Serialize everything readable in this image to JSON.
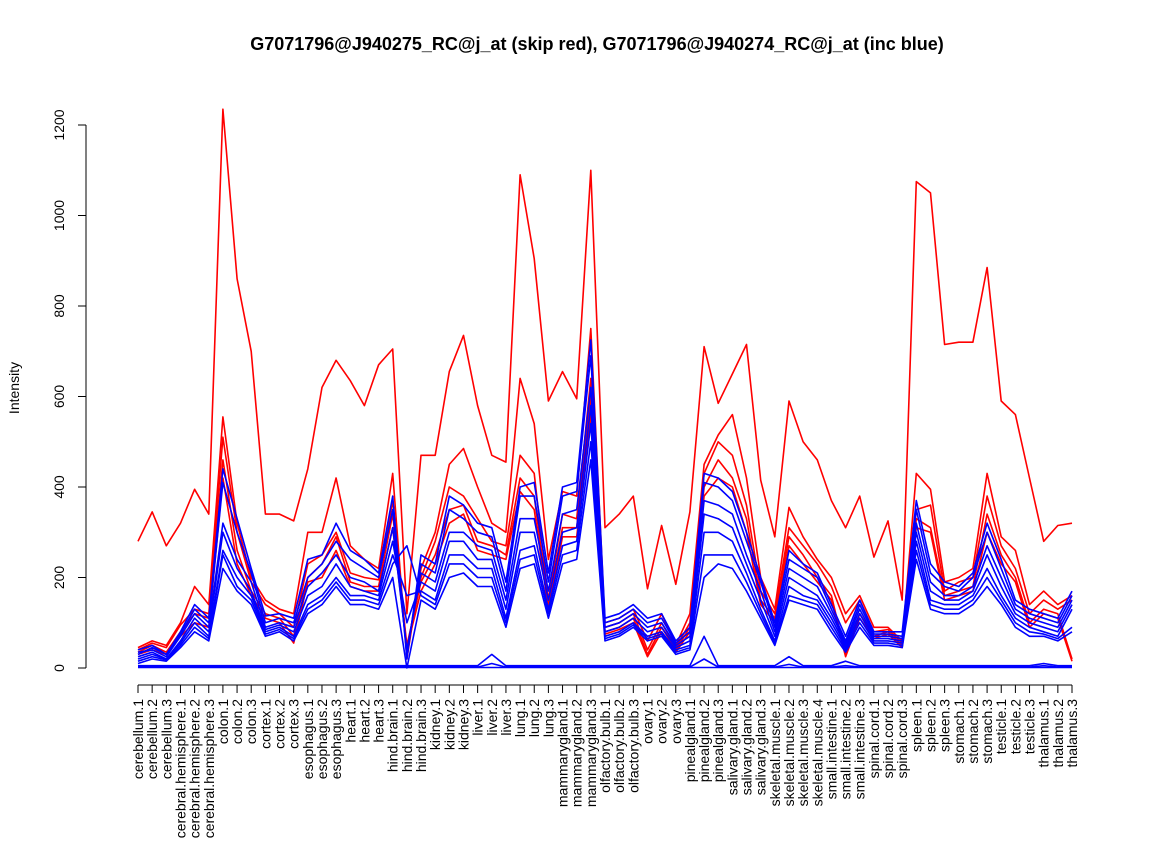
{
  "chart_data": {
    "type": "line",
    "title": "G7071796@J940275_RC@j_at (skip red), G7071796@J940274_RC@j_at (inc blue)",
    "ylabel": "Intensity",
    "xlabel": "",
    "ylim": [
      0,
      1200
    ],
    "yticks": [
      0,
      200,
      400,
      600,
      800,
      1000,
      1200
    ],
    "grid": false,
    "legend": "none",
    "colors": {
      "red": "#ff0000",
      "blue": "#0000ff"
    },
    "categories": [
      "cerebellum.1",
      "cerebellum.2",
      "cerebellum.3",
      "cerebral.hemisphere.1",
      "cerebral.hemisphere.2",
      "cerebral.hemisphere.3",
      "colon.1",
      "colon.2",
      "colon.3",
      "cortex.1",
      "cortex.2",
      "cortex.3",
      "esophagus.1",
      "esophagus.2",
      "esophagus.3",
      "heart.1",
      "heart.2",
      "heart.3",
      "hind.brain.1",
      "hind.brain.2",
      "hind.brain.3",
      "kidney.1",
      "kidney.2",
      "kidney.3",
      "liver.1",
      "liver.2",
      "liver.3",
      "lung.1",
      "lung.2",
      "lung.3",
      "mammarygland.1",
      "mammarygland.2",
      "mammarygland.3",
      "olfactory.bulb.1",
      "olfactory.bulb.2",
      "olfactory.bulb.3",
      "ovary.1",
      "ovary.2",
      "ovary.3",
      "pinealgland.1",
      "pinealgland.2",
      "pinealgland.3",
      "salivary.gland.1",
      "salivary.gland.2",
      "salivary.gland.3",
      "skeletal.muscle.1",
      "skeletal.muscle.2",
      "skeletal.muscle.3",
      "skeletal.muscle.4",
      "small.intestine.1",
      "small.intestine.2",
      "small.intestine.3",
      "spinal.cord.1",
      "spinal.cord.2",
      "spinal.cord.3",
      "spleen.1",
      "spleen.2",
      "spleen.3",
      "stomach.1",
      "stomach.2",
      "stomach.3",
      "testicle.1",
      "testicle.2",
      "testicle.3",
      "thalamus.1",
      "thalamus.2",
      "thalamus.3"
    ],
    "series": [
      {
        "color": "red",
        "values": [
          280,
          345,
          270,
          320,
          395,
          340,
          1235,
          860,
          700,
          340,
          340,
          325,
          440,
          620,
          680,
          635,
          580,
          670,
          705,
          120,
          470,
          470,
          655,
          735,
          580,
          470,
          455,
          1090,
          905,
          590,
          655,
          595,
          1100,
          310,
          340,
          380,
          175,
          315,
          185,
          345,
          710,
          585,
          650,
          715,
          415,
          290,
          590,
          500,
          460,
          370,
          310,
          380,
          245,
          325,
          150,
          1075,
          1050,
          715,
          720,
          720,
          885,
          590,
          560,
          420,
          280,
          315,
          320
        ]
      },
      {
        "color": "red",
        "values": [
          45,
          60,
          50,
          100,
          180,
          140,
          555,
          320,
          200,
          150,
          130,
          120,
          300,
          300,
          420,
          270,
          240,
          220,
          430,
          20,
          220,
          300,
          450,
          485,
          400,
          320,
          300,
          640,
          540,
          240,
          390,
          380,
          750,
          100,
          110,
          130,
          60,
          120,
          50,
          120,
          450,
          515,
          560,
          420,
          200,
          130,
          355,
          290,
          240,
          200,
          120,
          160,
          90,
          90,
          60,
          430,
          395,
          190,
          200,
          220,
          430,
          290,
          260,
          140,
          170,
          140,
          160
        ]
      },
      {
        "color": "red",
        "values": [
          40,
          55,
          45,
          95,
          130,
          120,
          510,
          300,
          190,
          140,
          120,
          90,
          230,
          250,
          300,
          210,
          200,
          195,
          370,
          40,
          200,
          280,
          400,
          380,
          330,
          280,
          270,
          470,
          430,
          150,
          340,
          330,
          640,
          90,
          100,
          120,
          40,
          100,
          45,
          100,
          430,
          500,
          470,
          360,
          170,
          120,
          310,
          270,
          230,
          180,
          100,
          150,
          80,
          85,
          55,
          350,
          360,
          170,
          190,
          200,
          380,
          270,
          220,
          120,
          150,
          130,
          150
        ]
      },
      {
        "color": "red",
        "values": [
          35,
          50,
          35,
          80,
          120,
          110,
          460,
          260,
          170,
          120,
          110,
          70,
          200,
          230,
          290,
          190,
          180,
          180,
          340,
          50,
          190,
          250,
          350,
          360,
          280,
          270,
          250,
          420,
          380,
          140,
          310,
          310,
          600,
          80,
          90,
          110,
          30,
          90,
          40,
          90,
          400,
          460,
          420,
          330,
          150,
          110,
          290,
          250,
          200,
          160,
          30,
          120,
          70,
          80,
          50,
          330,
          310,
          160,
          170,
          180,
          340,
          250,
          200,
          100,
          130,
          120,
          20
        ]
      },
      {
        "color": "red",
        "values": [
          30,
          40,
          30,
          70,
          100,
          90,
          420,
          230,
          160,
          110,
          100,
          55,
          190,
          200,
          260,
          180,
          170,
          170,
          310,
          45,
          170,
          230,
          320,
          340,
          260,
          250,
          240,
          390,
          350,
          130,
          290,
          290,
          560,
          75,
          85,
          100,
          25,
          80,
          35,
          80,
          380,
          420,
          400,
          300,
          140,
          100,
          270,
          230,
          190,
          150,
          25,
          110,
          65,
          75,
          45,
          310,
          300,
          150,
          160,
          170,
          300,
          230,
          190,
          90,
          120,
          110,
          15
        ]
      },
      {
        "color": "blue",
        "values": [
          40,
          50,
          30,
          80,
          140,
          110,
          440,
          330,
          220,
          115,
          120,
          110,
          240,
          250,
          320,
          260,
          240,
          210,
          380,
          20,
          250,
          230,
          380,
          360,
          320,
          310,
          190,
          400,
          410,
          210,
          400,
          410,
          725,
          110,
          120,
          140,
          110,
          120,
          60,
          90,
          430,
          420,
          390,
          300,
          200,
          100,
          260,
          230,
          210,
          140,
          70,
          150,
          80,
          80,
          80,
          370,
          230,
          190,
          180,
          210,
          320,
          240,
          150,
          130,
          120,
          110,
          170
        ]
      },
      {
        "color": "blue",
        "values": [
          30,
          45,
          30,
          75,
          130,
          100,
          410,
          300,
          210,
          100,
          110,
          100,
          200,
          230,
          280,
          240,
          220,
          200,
          350,
          30,
          230,
          210,
          350,
          330,
          300,
          290,
          170,
          380,
          380,
          190,
          380,
          390,
          690,
          100,
          110,
          130,
          100,
          110,
          55,
          80,
          410,
          400,
          370,
          280,
          190,
          90,
          240,
          220,
          200,
          130,
          60,
          140,
          75,
          75,
          70,
          350,
          210,
          180,
          170,
          200,
          300,
          220,
          140,
          120,
          110,
          100,
          160
        ]
      },
      {
        "color": "blue",
        "values": [
          35,
          40,
          25,
          70,
          120,
          90,
          320,
          240,
          190,
          90,
          100,
          90,
          180,
          210,
          250,
          200,
          190,
          170,
          310,
          40,
          210,
          190,
          300,
          300,
          270,
          260,
          150,
          330,
          330,
          170,
          340,
          350,
          620,
          90,
          100,
          120,
          90,
          100,
          50,
          70,
          370,
          360,
          340,
          250,
          170,
          80,
          220,
          200,
          180,
          120,
          55,
          130,
          70,
          70,
          65,
          320,
          190,
          160,
          160,
          180,
          270,
          200,
          130,
          110,
          100,
          90,
          150
        ]
      },
      {
        "color": "blue",
        "values": [
          25,
          35,
          20,
          60,
          110,
          80,
          300,
          220,
          170,
          85,
          95,
          80,
          160,
          180,
          230,
          180,
          170,
          160,
          280,
          100,
          190,
          170,
          280,
          280,
          240,
          240,
          130,
          300,
          300,
          150,
          300,
          310,
          580,
          80,
          90,
          110,
          80,
          90,
          45,
          60,
          340,
          330,
          310,
          230,
          150,
          70,
          200,
          180,
          160,
          110,
          50,
          120,
          65,
          65,
          60,
          300,
          170,
          150,
          150,
          170,
          250,
          180,
          120,
          100,
          90,
          80,
          140
        ]
      },
      {
        "color": "blue",
        "values": [
          20,
          30,
          20,
          55,
          100,
          70,
          260,
          200,
          160,
          80,
          90,
          70,
          140,
          160,
          200,
          160,
          160,
          150,
          250,
          160,
          170,
          150,
          250,
          250,
          220,
          220,
          110,
          260,
          270,
          130,
          270,
          280,
          540,
          70,
          80,
          100,
          70,
          80,
          40,
          50,
          300,
          300,
          280,
          210,
          130,
          60,
          180,
          160,
          150,
          100,
          45,
          110,
          60,
          60,
          55,
          280,
          150,
          140,
          140,
          160,
          220,
          160,
          110,
          90,
          80,
          70,
          130
        ]
      },
      {
        "color": "blue",
        "values": [
          15,
          25,
          18,
          50,
          90,
          65,
          250,
          180,
          150,
          75,
          85,
          65,
          130,
          150,
          190,
          150,
          150,
          140,
          230,
          270,
          160,
          140,
          230,
          230,
          200,
          200,
          100,
          240,
          250,
          120,
          250,
          260,
          500,
          65,
          75,
          95,
          65,
          75,
          35,
          45,
          250,
          250,
          250,
          190,
          120,
          55,
          160,
          150,
          140,
          90,
          40,
          100,
          55,
          55,
          50,
          260,
          140,
          130,
          130,
          150,
          200,
          150,
          100,
          80,
          75,
          65,
          90
        ]
      },
      {
        "color": "blue",
        "values": [
          10,
          20,
          15,
          45,
          80,
          60,
          220,
          170,
          140,
          70,
          80,
          60,
          120,
          140,
          180,
          140,
          140,
          130,
          200,
          0,
          150,
          130,
          200,
          210,
          180,
          180,
          90,
          220,
          230,
          110,
          230,
          240,
          460,
          60,
          70,
          90,
          60,
          70,
          30,
          40,
          200,
          230,
          220,
          170,
          110,
          50,
          150,
          140,
          130,
          80,
          35,
          90,
          50,
          50,
          45,
          240,
          130,
          120,
          120,
          140,
          180,
          140,
          90,
          70,
          70,
          60,
          80
        ]
      },
      {
        "color": "blue",
        "values": [
          5,
          5,
          5,
          5,
          5,
          5,
          5,
          5,
          5,
          5,
          5,
          5,
          5,
          5,
          5,
          5,
          5,
          5,
          5,
          5,
          5,
          5,
          5,
          5,
          5,
          30,
          5,
          5,
          5,
          5,
          5,
          5,
          5,
          5,
          5,
          5,
          5,
          5,
          5,
          5,
          70,
          5,
          5,
          5,
          5,
          5,
          25,
          5,
          5,
          5,
          15,
          5,
          5,
          5,
          5,
          5,
          5,
          5,
          5,
          5,
          5,
          5,
          5,
          5,
          10,
          5,
          5
        ]
      },
      {
        "color": "blue",
        "values": [
          2,
          2,
          2,
          2,
          2,
          2,
          2,
          2,
          2,
          2,
          2,
          2,
          2,
          2,
          2,
          2,
          2,
          2,
          2,
          2,
          2,
          2,
          2,
          2,
          2,
          10,
          2,
          2,
          2,
          2,
          2,
          2,
          2,
          2,
          2,
          2,
          2,
          2,
          2,
          2,
          20,
          2,
          2,
          2,
          2,
          2,
          8,
          2,
          2,
          2,
          5,
          2,
          2,
          2,
          2,
          2,
          2,
          2,
          2,
          2,
          2,
          2,
          2,
          2,
          5,
          2,
          2
        ]
      },
      {
        "color": "blue",
        "values": [
          1,
          1,
          1,
          1,
          1,
          1,
          1,
          1,
          1,
          1,
          1,
          1,
          1,
          1,
          1,
          1,
          1,
          1,
          1,
          1,
          1,
          1,
          1,
          1,
          1,
          1,
          1,
          1,
          1,
          1,
          1,
          1,
          1,
          1,
          1,
          1,
          1,
          1,
          1,
          1,
          1,
          1,
          1,
          1,
          1,
          1,
          1,
          1,
          1,
          1,
          1,
          1,
          1,
          1,
          1,
          1,
          1,
          1,
          1,
          1,
          1,
          1,
          1,
          1,
          1,
          1,
          1
        ]
      }
    ]
  }
}
